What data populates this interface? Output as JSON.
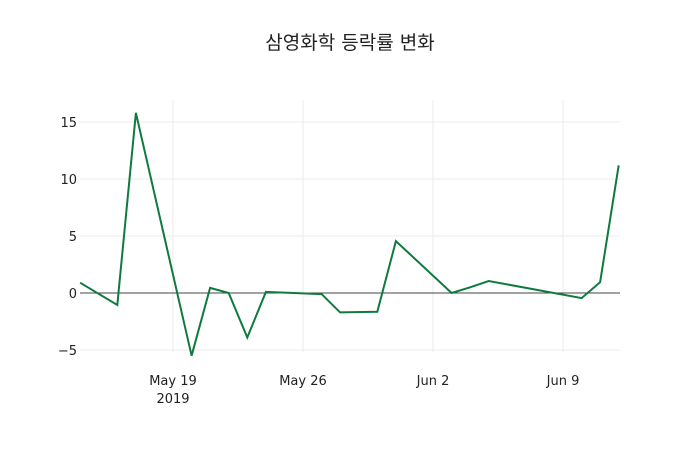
{
  "title": "삼영화학 등락률 변화",
  "colors": {
    "line": "#0f7a3e",
    "grid": "#ebebeb",
    "zero": "#444444"
  },
  "chart_data": {
    "type": "line",
    "title": "삼영화학 등락률 변화",
    "xlabel": "",
    "ylabel": "",
    "x": [
      "2019-05-14",
      "2019-05-16",
      "2019-05-17",
      "2019-05-20",
      "2019-05-21",
      "2019-05-22",
      "2019-05-23",
      "2019-05-24",
      "2019-05-27",
      "2019-05-28",
      "2019-05-30",
      "2019-05-31",
      "2019-06-03",
      "2019-06-04",
      "2019-06-05",
      "2019-06-10",
      "2019-06-11",
      "2019-06-12"
    ],
    "series": [
      {
        "name": "등락률",
        "values": [
          0.9,
          -1.05,
          15.8,
          -5.5,
          0.45,
          0.0,
          -3.9,
          0.1,
          -0.1,
          -1.7,
          -1.65,
          4.55,
          0.0,
          0.5,
          1.05,
          -0.45,
          0.95,
          11.2
        ]
      }
    ],
    "x_ticks": [
      "May 19\n2019",
      "May 26",
      "Jun 2",
      "Jun 9"
    ],
    "y_ticks": [
      -5,
      0,
      5,
      10,
      15
    ],
    "ylim": [
      -6.5,
      17
    ],
    "grid": true,
    "legend": "none"
  },
  "axis": {
    "x_tick_labels": [
      {
        "label": "May 19",
        "sub": "2019",
        "date": "2019-05-19"
      },
      {
        "label": "May 26",
        "date": "2019-05-26"
      },
      {
        "label": "Jun 2",
        "date": "2019-06-02"
      },
      {
        "label": "Jun 9",
        "date": "2019-06-09"
      }
    ],
    "y_tick_labels": [
      "15",
      "10",
      "5",
      "0",
      "−5"
    ]
  }
}
